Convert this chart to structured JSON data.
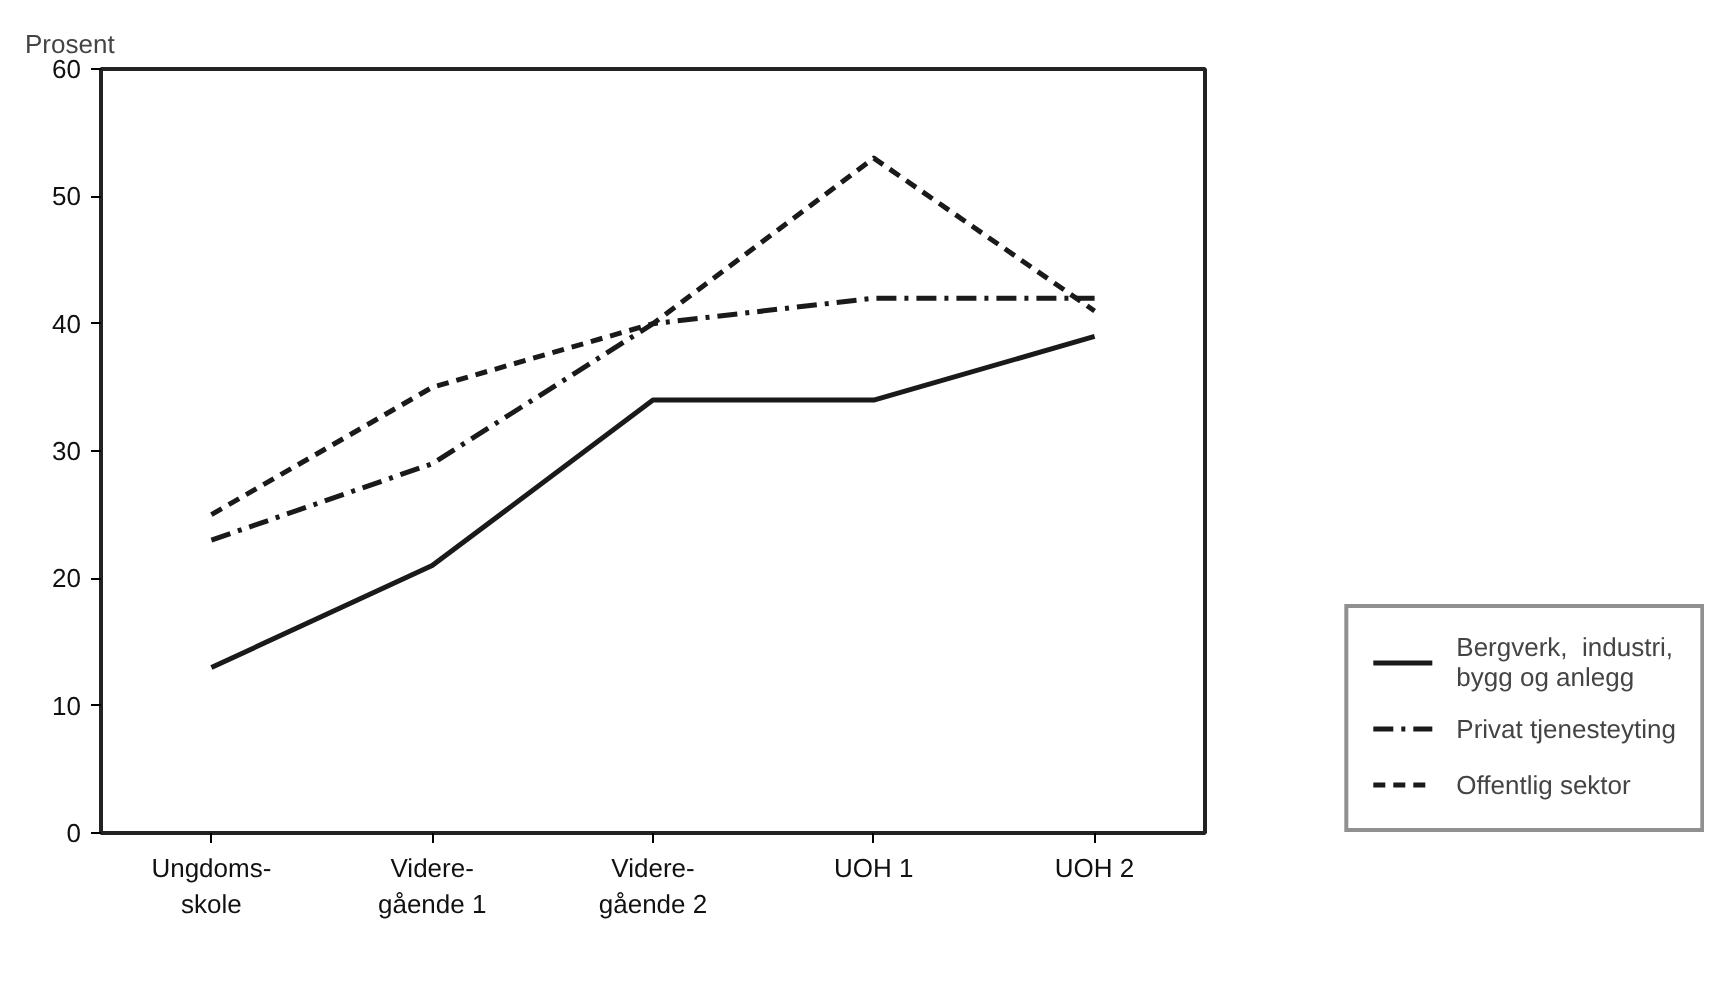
{
  "chart_data": {
    "type": "line",
    "ylabel": "Prosent",
    "categories": [
      "Ungdoms-\nskole",
      "Videre-\ngående 1",
      "Videre-\ngående 2",
      "UOH 1",
      "UOH 2"
    ],
    "series": [
      {
        "name": "Bergverk,  industri,\nbygg og anlegg",
        "color": "#1a1a1a",
        "line_style": "solid",
        "values": [
          13,
          21,
          34,
          34,
          39
        ]
      },
      {
        "name": "Privat tjenesteyting",
        "color": "#1a1a1a",
        "line_style": "dashdot",
        "values": [
          23,
          29,
          40,
          42,
          42
        ]
      },
      {
        "name": "Offentlig sektor",
        "color": "#1a1a1a",
        "line_style": "dashed",
        "values": [
          25,
          35,
          40,
          53,
          41
        ]
      }
    ],
    "ylim": [
      0,
      60
    ],
    "yticks": [
      0,
      10,
      20,
      30,
      40,
      50,
      60
    ],
    "grid": false,
    "legend": "bottom right",
    "marker": "none"
  }
}
